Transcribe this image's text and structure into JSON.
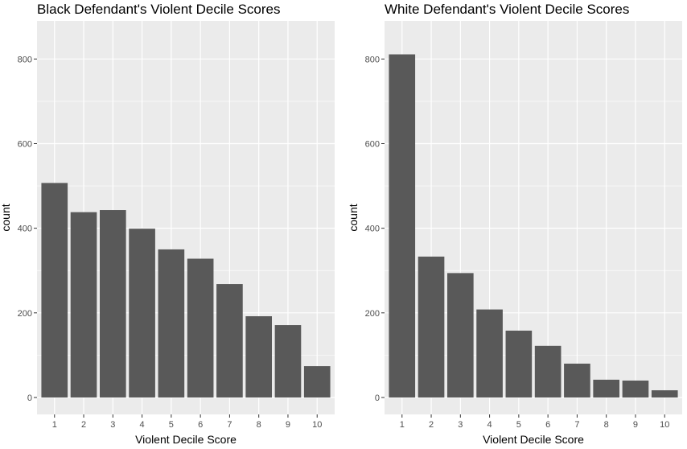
{
  "chart_data": [
    {
      "type": "bar",
      "title": "Black Defendant's Violent Decile Scores",
      "xlabel": "Violent Decile Score",
      "ylabel": "count",
      "categories": [
        "1",
        "2",
        "3",
        "4",
        "5",
        "6",
        "7",
        "8",
        "9",
        "10"
      ],
      "values": [
        507,
        438,
        443,
        399,
        350,
        328,
        268,
        192,
        171,
        74
      ],
      "ylim": [
        -40,
        890
      ],
      "yticks": [
        0,
        200,
        400,
        600,
        800
      ],
      "ytick_labels": [
        "0",
        "200",
        "400",
        "600",
        "800"
      ],
      "grid": true,
      "panel_color": "#ebebeb",
      "bar_color": "#595959"
    },
    {
      "type": "bar",
      "title": "White Defendant's Violent Decile Scores",
      "xlabel": "Violent Decile Score",
      "ylabel": "count",
      "categories": [
        "1",
        "2",
        "3",
        "4",
        "5",
        "6",
        "7",
        "8",
        "9",
        "10"
      ],
      "values": [
        811,
        333,
        294,
        208,
        158,
        122,
        80,
        42,
        40,
        17
      ],
      "ylim": [
        -40,
        890
      ],
      "yticks": [
        0,
        200,
        400,
        600,
        800
      ],
      "ytick_labels": [
        "0",
        "200",
        "400",
        "600",
        "800"
      ],
      "grid": true,
      "panel_color": "#ebebeb",
      "bar_color": "#595959"
    }
  ]
}
